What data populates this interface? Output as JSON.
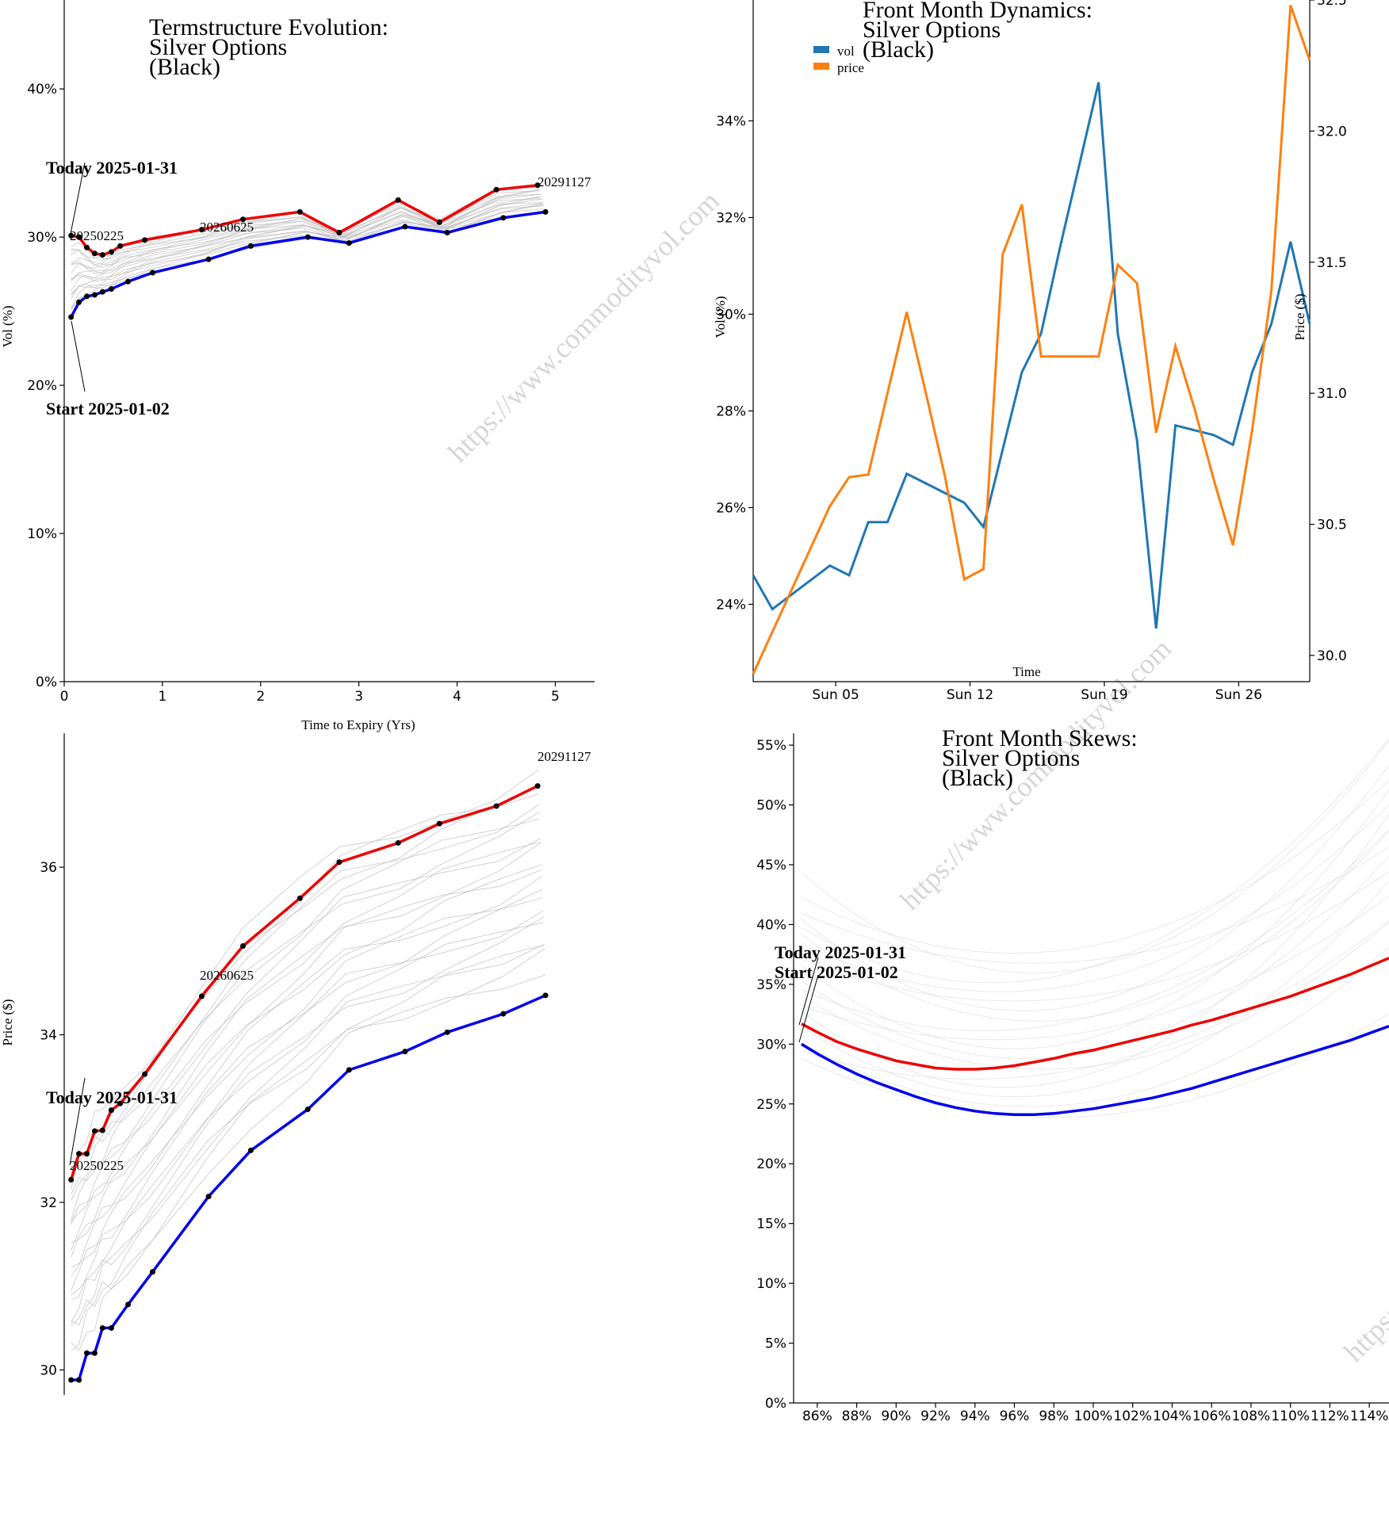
{
  "watermark_text": "https://www.commodityvol.com",
  "colors": {
    "today": "#ee0000",
    "start": "#0000ee",
    "vol": "#1f77b4",
    "price": "#ff7f0e",
    "history": "#bdbdbd"
  },
  "chart_data": [
    {
      "id": "termstructure-vol",
      "type": "line",
      "title_lines": [
        "Termstructure Evolution:",
        "Silver Options",
        "(Black)"
      ],
      "xlabel": "Time to Expiry (Yrs)",
      "ylabel": "Vol (%)",
      "xlim": [
        0,
        5.4
      ],
      "ylim": [
        0,
        46
      ],
      "x_ticks": [
        0,
        1,
        2,
        3,
        4,
        5
      ],
      "y_ticks": [
        0,
        10,
        20,
        30,
        40
      ],
      "y_tick_labels": [
        "0%",
        "10%",
        "20%",
        "30%",
        "40%"
      ],
      "annotations": [
        {
          "text": "Today 2025-01-31"
        },
        {
          "text": "Start 2025-01-02"
        }
      ],
      "contract_labels": [
        "20250225",
        "20260625",
        "20291127"
      ],
      "series": [
        {
          "role": "today",
          "x": [
            0.07,
            0.15,
            0.23,
            0.31,
            0.39,
            0.48,
            0.57,
            0.82,
            1.4,
            1.82,
            2.4,
            2.8,
            3.4,
            3.82,
            4.4,
            4.82
          ],
          "values": [
            30.1,
            30.0,
            29.3,
            28.9,
            28.8,
            29.0,
            29.4,
            29.8,
            30.5,
            31.2,
            31.7,
            30.3,
            32.5,
            31.0,
            33.2,
            33.5
          ]
        },
        {
          "role": "start",
          "x": [
            0.07,
            0.15,
            0.23,
            0.31,
            0.39,
            0.48,
            0.65,
            0.9,
            1.47,
            1.9,
            2.48,
            2.9,
            3.47,
            3.9,
            4.47,
            4.9
          ],
          "values": [
            24.6,
            25.6,
            26.0,
            26.1,
            26.3,
            26.5,
            27.0,
            27.6,
            28.5,
            29.4,
            30.0,
            29.6,
            30.7,
            30.3,
            31.3,
            31.7
          ]
        }
      ]
    },
    {
      "id": "front-month-dynamics",
      "type": "line",
      "title_lines": [
        "Front Month Dynamics:",
        "Silver Options",
        "(Black)"
      ],
      "xlabel": "Time",
      "ylabel": "Vol (%)",
      "ylabel_right": "Price ($)",
      "ylim": [
        22.4,
        36.5
      ],
      "ylim_right": [
        29.9,
        32.5
      ],
      "y_ticks": [
        24,
        26,
        28,
        30,
        32,
        34
      ],
      "y_tick_labels": [
        "24%",
        "26%",
        "28%",
        "30%",
        "32%",
        "34%"
      ],
      "y_ticks_right": [
        30.0,
        30.5,
        31.0,
        31.5,
        32.0,
        32.5
      ],
      "y_tick_labels_right": [
        "30.0",
        "30.5",
        "31.0",
        "31.5",
        "32.0",
        "32.5"
      ],
      "x_range_days": [
        0.7,
        29.7
      ],
      "x_ticks": [
        5,
        12,
        19,
        26
      ],
      "x_tick_labels": [
        "Sun 05",
        "Sun 12",
        "Sun 19",
        "Sun 26"
      ],
      "legend": [
        "vol",
        "price"
      ],
      "legend_position": "top-left",
      "series": [
        {
          "name": "vol",
          "x": [
            0.7,
            1.7,
            2.7,
            3.7,
            4.7,
            5.7,
            6.7,
            7.7,
            8.7,
            9.7,
            10.7,
            11.7,
            12.7,
            13.7,
            14.7,
            15.7,
            16.7,
            17.7,
            18.7,
            19.7,
            20.7,
            21.7,
            22.7,
            23.7,
            24.7,
            25.7,
            26.7,
            27.7,
            28.7,
            29.7
          ],
          "values": [
            24.6,
            23.9,
            24.2,
            24.5,
            24.8,
            24.6,
            25.7,
            25.7,
            26.7,
            26.5,
            26.3,
            26.1,
            25.6,
            27.2,
            28.8,
            29.6,
            31.4,
            33.1,
            34.8,
            29.6,
            27.4,
            23.5,
            27.7,
            27.6,
            27.5,
            27.3,
            28.8,
            29.8,
            31.5,
            29.8
          ]
        },
        {
          "name": "price",
          "x": [
            0.7,
            1.7,
            2.7,
            3.7,
            4.7,
            5.7,
            6.7,
            7.7,
            8.7,
            9.7,
            10.7,
            11.7,
            12.7,
            13.7,
            14.7,
            15.7,
            16.7,
            17.7,
            18.7,
            19.7,
            20.7,
            21.7,
            22.7,
            23.7,
            24.7,
            25.7,
            26.7,
            27.7,
            28.7,
            29.7
          ],
          "values": [
            29.93,
            30.09,
            30.25,
            30.41,
            30.57,
            30.68,
            30.69,
            31.0,
            31.31,
            31.0,
            30.68,
            30.29,
            30.33,
            31.53,
            31.72,
            31.14,
            31.14,
            31.14,
            31.14,
            31.49,
            31.42,
            30.85,
            31.18,
            30.94,
            30.67,
            30.42,
            30.86,
            31.39,
            32.48,
            32.27
          ]
        }
      ]
    },
    {
      "id": "termstructure-price",
      "type": "line",
      "xlabel": "",
      "ylabel": "Price ($)",
      "xlim": [
        0,
        5.4
      ],
      "ylim": [
        29.7,
        37.6
      ],
      "y_ticks": [
        30,
        32,
        34,
        36
      ],
      "y_tick_labels": [
        "30",
        "32",
        "34",
        "36"
      ],
      "annotations": [
        {
          "text": "Today 2025-01-31"
        }
      ],
      "contract_labels": [
        "20250225",
        "20260625",
        "20291127"
      ],
      "series": [
        {
          "role": "today",
          "x": [
            0.07,
            0.15,
            0.23,
            0.31,
            0.39,
            0.48,
            0.57,
            0.82,
            1.4,
            1.82,
            2.4,
            2.8,
            3.4,
            3.82,
            4.4,
            4.82
          ],
          "values": [
            32.27,
            32.58,
            32.58,
            32.85,
            32.86,
            33.1,
            33.18,
            33.53,
            34.46,
            35.06,
            35.63,
            36.06,
            36.29,
            36.52,
            36.73,
            36.97
          ]
        },
        {
          "role": "start",
          "x": [
            0.07,
            0.15,
            0.23,
            0.31,
            0.39,
            0.48,
            0.65,
            0.9,
            1.47,
            1.9,
            2.48,
            2.9,
            3.47,
            3.9,
            4.47,
            4.9
          ],
          "values": [
            29.88,
            29.88,
            30.2,
            30.2,
            30.5,
            30.5,
            30.78,
            31.17,
            32.07,
            32.62,
            33.11,
            33.58,
            33.8,
            34.03,
            34.25,
            34.47
          ]
        }
      ]
    },
    {
      "id": "front-month-skews",
      "type": "line",
      "title_lines": [
        "Front Month Skews:",
        "Silver Options",
        "(Black)"
      ],
      "xlabel": "",
      "ylabel": "",
      "xlim": [
        84.8,
        115.0
      ],
      "ylim": [
        0,
        56
      ],
      "y_ticks": [
        0,
        5,
        10,
        15,
        20,
        25,
        30,
        35,
        40,
        45,
        50,
        55
      ],
      "y_tick_labels": [
        "0%",
        "5%",
        "10%",
        "15%",
        "20%",
        "25%",
        "30%",
        "35%",
        "40%",
        "45%",
        "50%",
        "55%"
      ],
      "x_ticks": [
        86,
        88,
        90,
        92,
        94,
        96,
        98,
        100,
        102,
        104,
        106,
        108,
        110,
        112,
        114
      ],
      "x_tick_labels": [
        "86%",
        "88%",
        "90%",
        "92%",
        "94%",
        "96%",
        "98%",
        "100%",
        "102%",
        "104%",
        "106%",
        "108%",
        "110%",
        "112%",
        "114%"
      ],
      "annotations": [
        {
          "text": "Today 2025-01-31"
        },
        {
          "text": "Start 2025-01-02"
        }
      ],
      "series": [
        {
          "role": "today",
          "x": [
            85.2,
            86,
            87,
            88,
            89,
            90,
            91,
            92,
            93,
            94,
            95,
            96,
            97,
            98,
            99,
            100,
            101,
            102,
            103,
            104,
            105,
            106,
            107,
            108,
            109,
            110,
            111,
            112,
            113,
            114,
            115
          ],
          "values": [
            31.7,
            31.0,
            30.2,
            29.6,
            29.1,
            28.6,
            28.3,
            28.0,
            27.9,
            27.9,
            28.0,
            28.2,
            28.5,
            28.8,
            29.2,
            29.5,
            29.9,
            30.3,
            30.7,
            31.1,
            31.6,
            32.0,
            32.5,
            33.0,
            33.5,
            34.0,
            34.6,
            35.2,
            35.8,
            36.5,
            37.2
          ]
        },
        {
          "role": "start",
          "x": [
            85.2,
            86,
            87,
            88,
            89,
            90,
            91,
            92,
            93,
            94,
            95,
            96,
            97,
            98,
            99,
            100,
            101,
            102,
            103,
            104,
            105,
            106,
            107,
            108,
            109,
            110,
            111,
            112,
            113,
            114,
            115
          ],
          "values": [
            30.0,
            29.2,
            28.3,
            27.5,
            26.8,
            26.2,
            25.6,
            25.1,
            24.7,
            24.4,
            24.2,
            24.1,
            24.1,
            24.2,
            24.4,
            24.6,
            24.9,
            25.2,
            25.5,
            25.9,
            26.3,
            26.8,
            27.3,
            27.8,
            28.3,
            28.8,
            29.3,
            29.8,
            30.3,
            30.9,
            31.5
          ]
        }
      ]
    }
  ]
}
